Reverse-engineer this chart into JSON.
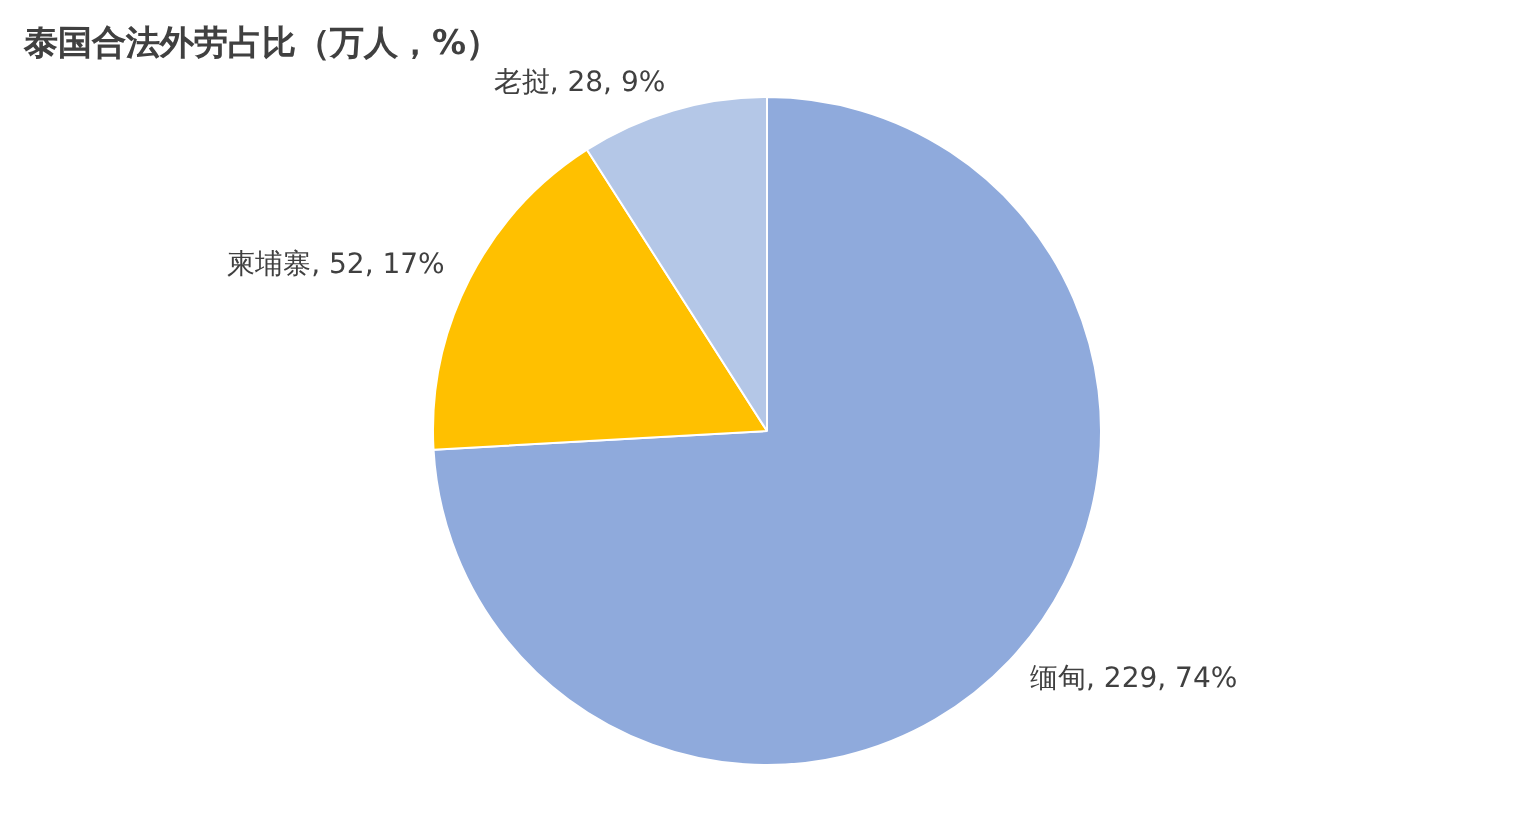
{
  "chart_data": {
    "type": "pie",
    "title": "泰国合法外劳占比（万人，%）",
    "categories": [
      "缅甸",
      "柬埔寨",
      "老挝"
    ],
    "values": [
      229,
      52,
      28
    ],
    "colors": [
      "#8faadc",
      "#ffc000",
      "#b4c7e7"
    ],
    "value_labels": [
      "229, 74%",
      "52, 17%",
      "28, 9%"
    ],
    "legend": false
  }
}
